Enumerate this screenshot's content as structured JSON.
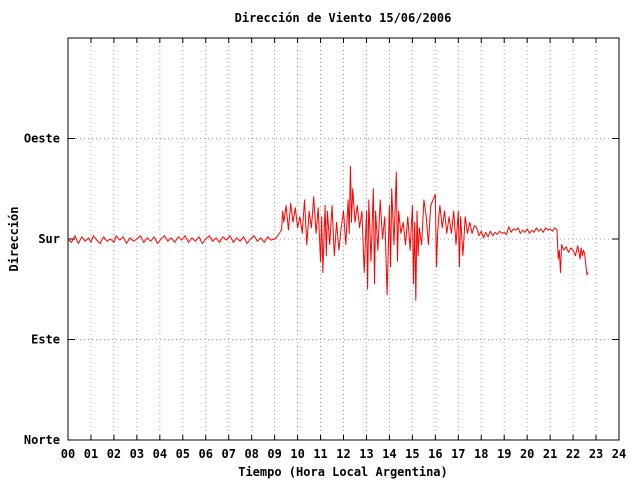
{
  "chart_data": {
    "type": "line",
    "title": "Dirección de Viento 15/06/2006",
    "xlabel": "Tiempo (Hora Local Argentina)",
    "ylabel": "Dirección",
    "xlim": [
      0,
      24
    ],
    "ylim": [
      0,
      360
    ],
    "grid": true,
    "x_ticks": [
      0,
      1,
      2,
      3,
      4,
      5,
      6,
      7,
      8,
      9,
      10,
      11,
      12,
      13,
      14,
      15,
      16,
      17,
      18,
      19,
      20,
      21,
      22,
      23,
      24
    ],
    "x_tick_labels": [
      "00",
      "01",
      "02",
      "03",
      "04",
      "05",
      "06",
      "07",
      "08",
      "09",
      "10",
      "11",
      "12",
      "13",
      "14",
      "15",
      "16",
      "17",
      "18",
      "19",
      "20",
      "21",
      "22",
      "23",
      "24"
    ],
    "y_ticks": [
      0,
      90,
      180,
      270
    ],
    "y_tick_labels": [
      "Norte",
      "Este",
      "Sur",
      "Oeste"
    ],
    "series": [
      {
        "color": "#ff0000",
        "points": [
          [
            0.0,
            180
          ],
          [
            0.15,
            177
          ],
          [
            0.3,
            183
          ],
          [
            0.45,
            176
          ],
          [
            0.6,
            182
          ],
          [
            0.75,
            178
          ],
          [
            0.9,
            181
          ],
          [
            1.0,
            177
          ],
          [
            1.1,
            183
          ],
          [
            1.25,
            179
          ],
          [
            1.4,
            176
          ],
          [
            1.55,
            182
          ],
          [
            1.7,
            178
          ],
          [
            1.85,
            180
          ],
          [
            2.0,
            177
          ],
          [
            2.1,
            183
          ],
          [
            2.25,
            179
          ],
          [
            2.4,
            182
          ],
          [
            2.55,
            176
          ],
          [
            2.7,
            181
          ],
          [
            2.85,
            178
          ],
          [
            3.0,
            180
          ],
          [
            3.15,
            183
          ],
          [
            3.3,
            177
          ],
          [
            3.45,
            181
          ],
          [
            3.6,
            178
          ],
          [
            3.75,
            182
          ],
          [
            3.9,
            176
          ],
          [
            4.05,
            180
          ],
          [
            4.2,
            183
          ],
          [
            4.35,
            178
          ],
          [
            4.5,
            181
          ],
          [
            4.65,
            177
          ],
          [
            4.8,
            182
          ],
          [
            4.95,
            179
          ],
          [
            5.1,
            183
          ],
          [
            5.25,
            177
          ],
          [
            5.4,
            181
          ],
          [
            5.55,
            178
          ],
          [
            5.7,
            182
          ],
          [
            5.85,
            176
          ],
          [
            6.0,
            180
          ],
          [
            6.15,
            183
          ],
          [
            6.3,
            178
          ],
          [
            6.45,
            181
          ],
          [
            6.6,
            177
          ],
          [
            6.75,
            182
          ],
          [
            6.9,
            179
          ],
          [
            7.05,
            183
          ],
          [
            7.2,
            177
          ],
          [
            7.35,
            181
          ],
          [
            7.5,
            178
          ],
          [
            7.65,
            182
          ],
          [
            7.8,
            176
          ],
          [
            7.95,
            180
          ],
          [
            8.1,
            183
          ],
          [
            8.25,
            178
          ],
          [
            8.4,
            181
          ],
          [
            8.55,
            177
          ],
          [
            8.7,
            182
          ],
          [
            8.85,
            179
          ],
          [
            9.0,
            180
          ],
          [
            9.1,
            182
          ],
          [
            9.2,
            185
          ],
          [
            9.3,
            188
          ],
          [
            9.35,
            205
          ],
          [
            9.4,
            195
          ],
          [
            9.5,
            210
          ],
          [
            9.6,
            188
          ],
          [
            9.7,
            212
          ],
          [
            9.8,
            195
          ],
          [
            9.9,
            208
          ],
          [
            10.0,
            190
          ],
          [
            10.1,
            200
          ],
          [
            10.2,
            185
          ],
          [
            10.3,
            215
          ],
          [
            10.4,
            175
          ],
          [
            10.5,
            205
          ],
          [
            10.6,
            190
          ],
          [
            10.7,
            218
          ],
          [
            10.8,
            185
          ],
          [
            10.9,
            208
          ],
          [
            11.0,
            160
          ],
          [
            11.05,
            200
          ],
          [
            11.1,
            150
          ],
          [
            11.2,
            210
          ],
          [
            11.25,
            165
          ],
          [
            11.3,
            205
          ],
          [
            11.4,
            175
          ],
          [
            11.5,
            210
          ],
          [
            11.6,
            165
          ],
          [
            11.7,
            195
          ],
          [
            11.8,
            170
          ],
          [
            11.9,
            190
          ],
          [
            12.0,
            205
          ],
          [
            12.1,
            175
          ],
          [
            12.2,
            215
          ],
          [
            12.25,
            185
          ],
          [
            12.3,
            245
          ],
          [
            12.35,
            195
          ],
          [
            12.4,
            225
          ],
          [
            12.5,
            195
          ],
          [
            12.6,
            210
          ],
          [
            12.7,
            190
          ],
          [
            12.8,
            205
          ],
          [
            12.9,
            150
          ],
          [
            13.0,
            205
          ],
          [
            13.05,
            135
          ],
          [
            13.1,
            215
          ],
          [
            13.2,
            160
          ],
          [
            13.3,
            225
          ],
          [
            13.35,
            140
          ],
          [
            13.4,
            205
          ],
          [
            13.5,
            170
          ],
          [
            13.6,
            215
          ],
          [
            13.7,
            180
          ],
          [
            13.8,
            200
          ],
          [
            13.9,
            130
          ],
          [
            14.0,
            210
          ],
          [
            14.05,
            155
          ],
          [
            14.1,
            225
          ],
          [
            14.2,
            175
          ],
          [
            14.3,
            240
          ],
          [
            14.35,
            160
          ],
          [
            14.4,
            205
          ],
          [
            14.5,
            185
          ],
          [
            14.6,
            195
          ],
          [
            14.7,
            175
          ],
          [
            14.8,
            200
          ],
          [
            14.9,
            170
          ],
          [
            15.0,
            210
          ],
          [
            15.05,
            140
          ],
          [
            15.1,
            195
          ],
          [
            15.15,
            125
          ],
          [
            15.2,
            205
          ],
          [
            15.25,
            165
          ],
          [
            15.3,
            190
          ],
          [
            15.4,
            175
          ],
          [
            15.5,
            215
          ],
          [
            15.6,
            200
          ],
          [
            15.7,
            175
          ],
          [
            15.8,
            210
          ],
          [
            15.9,
            215
          ],
          [
            16.0,
            220
          ],
          [
            16.05,
            155
          ],
          [
            16.1,
            185
          ],
          [
            16.15,
            200
          ],
          [
            16.2,
            210
          ],
          [
            16.3,
            190
          ],
          [
            16.4,
            205
          ],
          [
            16.5,
            185
          ],
          [
            16.6,
            200
          ],
          [
            16.7,
            185
          ],
          [
            16.8,
            205
          ],
          [
            16.9,
            175
          ],
          [
            17.0,
            205
          ],
          [
            17.05,
            155
          ],
          [
            17.1,
            200
          ],
          [
            17.2,
            165
          ],
          [
            17.3,
            200
          ],
          [
            17.4,
            185
          ],
          [
            17.5,
            195
          ],
          [
            17.6,
            185
          ],
          [
            17.7,
            192
          ],
          [
            17.8,
            190
          ],
          [
            17.9,
            183
          ],
          [
            18.0,
            187
          ],
          [
            18.1,
            181
          ],
          [
            18.2,
            186
          ],
          [
            18.3,
            182
          ],
          [
            18.4,
            187
          ],
          [
            18.5,
            183
          ],
          [
            18.6,
            186
          ],
          [
            18.7,
            184
          ],
          [
            18.8,
            187
          ],
          [
            18.9,
            185
          ],
          [
            19.0,
            186
          ],
          [
            19.1,
            184
          ],
          [
            19.2,
            191
          ],
          [
            19.3,
            186
          ],
          [
            19.4,
            189
          ],
          [
            19.5,
            188
          ],
          [
            19.6,
            190
          ],
          [
            19.7,
            185
          ],
          [
            19.8,
            188
          ],
          [
            19.9,
            186
          ],
          [
            20.0,
            189
          ],
          [
            20.1,
            185
          ],
          [
            20.2,
            188
          ],
          [
            20.3,
            186
          ],
          [
            20.4,
            190
          ],
          [
            20.5,
            187
          ],
          [
            20.6,
            189
          ],
          [
            20.7,
            186
          ],
          [
            20.8,
            190
          ],
          [
            20.9,
            188
          ],
          [
            21.0,
            189
          ],
          [
            21.1,
            187
          ],
          [
            21.2,
            190
          ],
          [
            21.3,
            188
          ],
          [
            21.35,
            162
          ],
          [
            21.4,
            170
          ],
          [
            21.45,
            150
          ],
          [
            21.5,
            175
          ],
          [
            21.6,
            170
          ],
          [
            21.7,
            173
          ],
          [
            21.8,
            168
          ],
          [
            21.9,
            172
          ],
          [
            22.0,
            170
          ],
          [
            22.1,
            165
          ],
          [
            22.2,
            174
          ],
          [
            22.3,
            162
          ],
          [
            22.35,
            172
          ],
          [
            22.4,
            165
          ],
          [
            22.45,
            170
          ],
          [
            22.5,
            167
          ],
          [
            22.55,
            158
          ],
          [
            22.6,
            148
          ],
          [
            22.65,
            150
          ]
        ]
      }
    ]
  }
}
